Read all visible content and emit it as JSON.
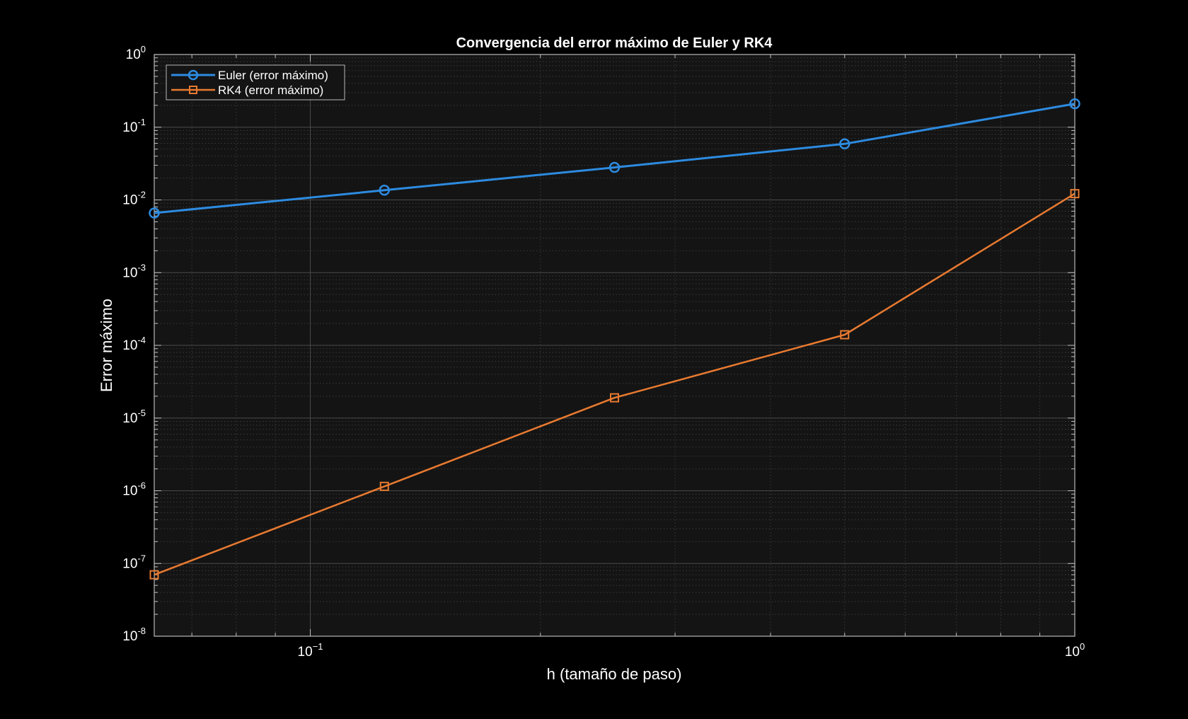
{
  "chart_data": {
    "type": "line",
    "title": "Convergencia del error máximo de Euler y RK4",
    "xlabel": "h (tamaño de paso)",
    "ylabel": "Error máximo",
    "x_scale": "log",
    "y_scale": "log",
    "xlim": [
      0.0625,
      1
    ],
    "ylim": [
      1e-08,
      1
    ],
    "grid": true,
    "minor_grid": true,
    "legend_position": "top-left",
    "x_ticks": [
      {
        "value": 0.1,
        "base": "10",
        "exp": "−1"
      },
      {
        "value": 1,
        "base": "10",
        "exp": "0"
      }
    ],
    "y_ticks": [
      {
        "value": 1,
        "base": "10",
        "exp": "0"
      },
      {
        "value": 0.1,
        "base": "10",
        "exp": "-1"
      },
      {
        "value": 0.01,
        "base": "10",
        "exp": "-2"
      },
      {
        "value": 0.001,
        "base": "10",
        "exp": "-3"
      },
      {
        "value": 0.0001,
        "base": "10",
        "exp": "-4"
      },
      {
        "value": 1e-05,
        "base": "10",
        "exp": "-5"
      },
      {
        "value": 1e-06,
        "base": "10",
        "exp": "-6"
      },
      {
        "value": 1e-07,
        "base": "10",
        "exp": "-7"
      },
      {
        "value": 1e-08,
        "base": "10",
        "exp": "-8"
      }
    ],
    "series": [
      {
        "name": "Euler (error máximo)",
        "color": "#2d8be0",
        "marker": "circle",
        "x": [
          0.0625,
          0.125,
          0.25,
          0.5,
          1
        ],
        "y": [
          0.0066,
          0.0136,
          0.028,
          0.059,
          0.21
        ]
      },
      {
        "name": "RK4 (error máximo)",
        "color": "#e87a30",
        "marker": "square",
        "x": [
          0.0625,
          0.125,
          0.25,
          0.5,
          1
        ],
        "y": [
          7e-08,
          1.15e-06,
          1.9e-05,
          0.00014,
          0.0122
        ]
      }
    ]
  }
}
